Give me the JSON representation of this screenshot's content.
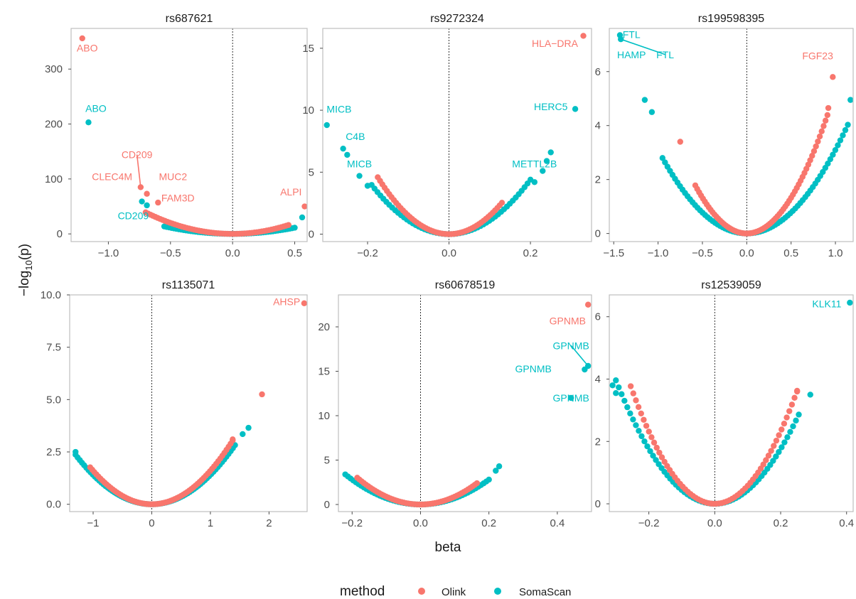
{
  "chart_data": {
    "type": "scatter",
    "xlabel": "beta",
    "ylabel_base": "−log",
    "ylabel_sub": "10",
    "ylabel_tail": "(p)",
    "legend": {
      "title": "method",
      "position": "bottom",
      "items": [
        {
          "name": "Olink",
          "color": "#F8766D"
        },
        {
          "name": "SomaScan",
          "color": "#00BFC4"
        }
      ]
    },
    "colors": {
      "Olink": "#F8766D",
      "SomaScan": "#00BFC4"
    },
    "panels": [
      {
        "title": "rs687621",
        "xlim": [
          -1.3,
          0.6
        ],
        "ylim": [
          -14,
          374
        ],
        "xticks": [
          -1.0,
          -0.5,
          0.0,
          0.5
        ],
        "xtick_labels": [
          "−1.0",
          "−0.5",
          "0.0",
          "0.5"
        ],
        "yticks": [
          0,
          100,
          200,
          300
        ],
        "ytick_labels": [
          "0",
          "100",
          "200",
          "300"
        ],
        "curves": [
          {
            "method": "Olink",
            "k": 80,
            "xmin": -0.7,
            "xmax": 0.45,
            "n": 60
          },
          {
            "method": "SomaScan",
            "k": 45,
            "xmin": -0.55,
            "xmax": 0.5,
            "n": 55
          }
        ],
        "points": [
          {
            "x": -1.21,
            "y": 356,
            "method": "Olink"
          },
          {
            "x": -1.16,
            "y": 203,
            "method": "SomaScan"
          },
          {
            "x": -0.74,
            "y": 85,
            "method": "Olink"
          },
          {
            "x": -0.69,
            "y": 73,
            "method": "Olink"
          },
          {
            "x": -0.6,
            "y": 57,
            "method": "Olink"
          },
          {
            "x": -0.73,
            "y": 59,
            "method": "SomaScan"
          },
          {
            "x": -0.69,
            "y": 52,
            "method": "SomaScan"
          },
          {
            "x": 0.58,
            "y": 50,
            "method": "Olink"
          },
          {
            "x": 0.56,
            "y": 30,
            "method": "SomaScan"
          }
        ],
        "labels": [
          {
            "text": "ABO",
            "x": -1.17,
            "y": 332,
            "method": "Olink"
          },
          {
            "text": "ABO",
            "x": -1.1,
            "y": 222,
            "method": "SomaScan"
          },
          {
            "text": "CD209",
            "x": -0.77,
            "y": 138,
            "method": "Olink",
            "line_to": [
              -0.74,
              85
            ]
          },
          {
            "text": "CLEC4M",
            "x": -0.97,
            "y": 98,
            "method": "Olink"
          },
          {
            "text": "MUC2",
            "x": -0.48,
            "y": 98,
            "method": "Olink"
          },
          {
            "text": "FAM3D",
            "x": -0.44,
            "y": 59,
            "method": "Olink"
          },
          {
            "text": "ALPI",
            "x": 0.47,
            "y": 70,
            "method": "Olink"
          },
          {
            "text": "CD209",
            "x": -0.8,
            "y": 27,
            "method": "SomaScan"
          }
        ]
      },
      {
        "title": "rs9272324",
        "xlim": [
          -0.31,
          0.35
        ],
        "ylim": [
          -0.6,
          16.6
        ],
        "xticks": [
          -0.2,
          0.0,
          0.2
        ],
        "xtick_labels": [
          "−0.2",
          "0.0",
          "0.2"
        ],
        "yticks": [
          0,
          5,
          10,
          15
        ],
        "ytick_labels": [
          "0",
          "5",
          "10",
          "15"
        ],
        "curves": [
          {
            "method": "Olink",
            "k": 150,
            "xmin": -0.175,
            "xmax": 0.13,
            "n": 55
          },
          {
            "method": "SomaScan",
            "k": 110,
            "xmin": -0.19,
            "xmax": 0.2,
            "n": 55
          }
        ],
        "points": [
          {
            "x": 0.33,
            "y": 16.0,
            "method": "Olink"
          },
          {
            "x": -0.3,
            "y": 8.8,
            "method": "SomaScan"
          },
          {
            "x": -0.26,
            "y": 6.9,
            "method": "SomaScan"
          },
          {
            "x": -0.25,
            "y": 6.4,
            "method": "SomaScan"
          },
          {
            "x": -0.22,
            "y": 4.7,
            "method": "SomaScan"
          },
          {
            "x": -0.2,
            "y": 3.9,
            "method": "SomaScan"
          },
          {
            "x": 0.31,
            "y": 10.1,
            "method": "SomaScan"
          },
          {
            "x": 0.25,
            "y": 6.6,
            "method": "SomaScan"
          },
          {
            "x": 0.24,
            "y": 5.9,
            "method": "SomaScan"
          },
          {
            "x": 0.23,
            "y": 5.1,
            "method": "SomaScan"
          },
          {
            "x": 0.21,
            "y": 4.2,
            "method": "SomaScan"
          }
        ],
        "labels": [
          {
            "text": "HLA−DRA",
            "x": 0.26,
            "y": 15.1,
            "method": "Olink"
          },
          {
            "text": "MICB",
            "x": -0.27,
            "y": 9.8,
            "method": "SomaScan"
          },
          {
            "text": "C4B",
            "x": -0.23,
            "y": 7.6,
            "method": "SomaScan"
          },
          {
            "text": "MICB",
            "x": -0.22,
            "y": 5.4,
            "method": "SomaScan"
          },
          {
            "text": "HERC5",
            "x": 0.25,
            "y": 10.0,
            "method": "SomaScan"
          },
          {
            "text": "METTL2B",
            "x": 0.21,
            "y": 5.4,
            "method": "SomaScan"
          }
        ]
      },
      {
        "title": "rs199598395",
        "xlim": [
          -1.55,
          1.2
        ],
        "ylim": [
          -0.3,
          7.6
        ],
        "xticks": [
          -1.5,
          -1.0,
          -0.5,
          0.0,
          0.5,
          1.0
        ],
        "xtick_labels": [
          "−1.5",
          "−1.0",
          "−0.5",
          "0.0",
          "0.5",
          "1.0"
        ],
        "yticks": [
          0,
          2,
          4,
          6
        ],
        "ytick_labels": [
          "0",
          "2",
          "4",
          "6"
        ],
        "curves": [
          {
            "method": "Olink",
            "k": 5.3,
            "xmin": -0.58,
            "xmax": 0.91,
            "n": 70
          },
          {
            "method": "SomaScan",
            "k": 3.1,
            "xmin": -0.95,
            "xmax": 1.14,
            "n": 75
          }
        ],
        "points": [
          {
            "x": -1.43,
            "y": 7.35,
            "method": "SomaScan"
          },
          {
            "x": -1.42,
            "y": 7.2,
            "method": "SomaScan"
          },
          {
            "x": -1.15,
            "y": 4.95,
            "method": "SomaScan"
          },
          {
            "x": -1.07,
            "y": 4.5,
            "method": "SomaScan"
          },
          {
            "x": -0.75,
            "y": 3.4,
            "method": "Olink"
          },
          {
            "x": 0.92,
            "y": 4.65,
            "method": "Olink"
          },
          {
            "x": 0.97,
            "y": 5.8,
            "method": "Olink"
          },
          {
            "x": 1.17,
            "y": 4.95,
            "method": "SomaScan"
          }
        ],
        "labels": [
          {
            "text": "FTL",
            "x": -1.3,
            "y": 7.25,
            "method": "SomaScan"
          },
          {
            "text": "HAMP",
            "x": -1.3,
            "y": 6.5,
            "method": "SomaScan"
          },
          {
            "text": "FTL",
            "x": -0.92,
            "y": 6.5,
            "method": "SomaScan",
            "line_to": [
              -1.42,
              7.2
            ]
          },
          {
            "text": "FGF23",
            "x": 0.8,
            "y": 6.45,
            "method": "Olink"
          }
        ]
      },
      {
        "title": "rs1135071",
        "xlim": [
          -1.4,
          2.65
        ],
        "ylim": [
          -0.35,
          10.0
        ],
        "xticks": [
          -1,
          0,
          1,
          2
        ],
        "xtick_labels": [
          "−1",
          "0",
          "1",
          "2"
        ],
        "yticks": [
          0.0,
          2.5,
          5.0,
          7.5,
          10.0
        ],
        "ytick_labels": [
          "0.0",
          "2.5",
          "5.0",
          "7.5",
          "10.0"
        ],
        "curves": [
          {
            "method": "Olink",
            "k": 1.6,
            "xmin": -1.05,
            "xmax": 1.38,
            "n": 70
          },
          {
            "method": "SomaScan",
            "k": 1.4,
            "xmin": -1.3,
            "xmax": 1.42,
            "n": 75
          }
        ],
        "points": [
          {
            "x": 2.6,
            "y": 9.6,
            "method": "Olink"
          },
          {
            "x": 1.88,
            "y": 5.25,
            "method": "Olink"
          },
          {
            "x": 1.38,
            "y": 3.1,
            "method": "Olink"
          },
          {
            "x": 1.65,
            "y": 3.65,
            "method": "SomaScan"
          },
          {
            "x": 1.55,
            "y": 3.35,
            "method": "SomaScan"
          },
          {
            "x": -1.3,
            "y": 2.5,
            "method": "SomaScan"
          }
        ],
        "labels": [
          {
            "text": "AHSP",
            "x": 2.3,
            "y": 9.5,
            "method": "Olink"
          }
        ]
      },
      {
        "title": "rs60678519",
        "xlim": [
          -0.24,
          0.5
        ],
        "ylim": [
          -0.8,
          23.6
        ],
        "xticks": [
          -0.2,
          0.0,
          0.2,
          0.4
        ],
        "xtick_labels": [
          "−0.2",
          "0.0",
          "0.2",
          "0.4"
        ],
        "yticks": [
          0,
          5,
          10,
          15,
          20
        ],
        "ytick_labels": [
          "0",
          "5",
          "10",
          "15",
          "20"
        ],
        "curves": [
          {
            "method": "Olink",
            "k": 88,
            "xmin": -0.185,
            "xmax": 0.165,
            "n": 55
          },
          {
            "method": "SomaScan",
            "k": 70,
            "xmin": -0.22,
            "xmax": 0.2,
            "n": 55
          }
        ],
        "points": [
          {
            "x": 0.49,
            "y": 22.5,
            "method": "Olink"
          },
          {
            "x": 0.49,
            "y": 15.6,
            "method": "SomaScan"
          },
          {
            "x": 0.48,
            "y": 15.2,
            "method": "SomaScan"
          },
          {
            "x": 0.44,
            "y": 12.0,
            "method": "SomaScan"
          },
          {
            "x": 0.23,
            "y": 4.3,
            "method": "SomaScan"
          },
          {
            "x": 0.22,
            "y": 3.8,
            "method": "SomaScan"
          }
        ],
        "labels": [
          {
            "text": "GPNMB",
            "x": 0.43,
            "y": 20.3,
            "method": "Olink"
          },
          {
            "text": "GPNMB",
            "x": 0.44,
            "y": 17.5,
            "method": "SomaScan",
            "line_to": [
              0.49,
              15.6
            ]
          },
          {
            "text": "GPNMB",
            "x": 0.33,
            "y": 14.9,
            "method": "SomaScan"
          },
          {
            "text": "GPNMB",
            "x": 0.44,
            "y": 11.6,
            "method": "SomaScan"
          }
        ]
      },
      {
        "title": "rs12539059",
        "xlim": [
          -0.32,
          0.42
        ],
        "ylim": [
          -0.25,
          6.7
        ],
        "xticks": [
          -0.2,
          0.0,
          0.2,
          0.4
        ],
        "xtick_labels": [
          "−0.2",
          "0.0",
          "0.2",
          "0.4"
        ],
        "yticks": [
          0,
          2,
          4,
          6
        ],
        "ytick_labels": [
          "0",
          "2",
          "4",
          "6"
        ],
        "curves": [
          {
            "method": "Olink",
            "k": 58,
            "xmin": -0.255,
            "xmax": 0.25,
            "n": 65
          },
          {
            "method": "SomaScan",
            "k": 44,
            "xmin": -0.3,
            "xmax": 0.255,
            "n": 65
          }
        ],
        "points": [
          {
            "x": 0.41,
            "y": 6.45,
            "method": "SomaScan"
          },
          {
            "x": -0.31,
            "y": 3.8,
            "method": "SomaScan"
          },
          {
            "x": -0.3,
            "y": 3.55,
            "method": "SomaScan"
          },
          {
            "x": 0.29,
            "y": 3.5,
            "method": "SomaScan"
          },
          {
            "x": 0.25,
            "y": 3.6,
            "method": "Olink"
          }
        ],
        "labels": [
          {
            "text": "KLK11",
            "x": 0.34,
            "y": 6.3,
            "method": "SomaScan"
          }
        ]
      }
    ]
  }
}
